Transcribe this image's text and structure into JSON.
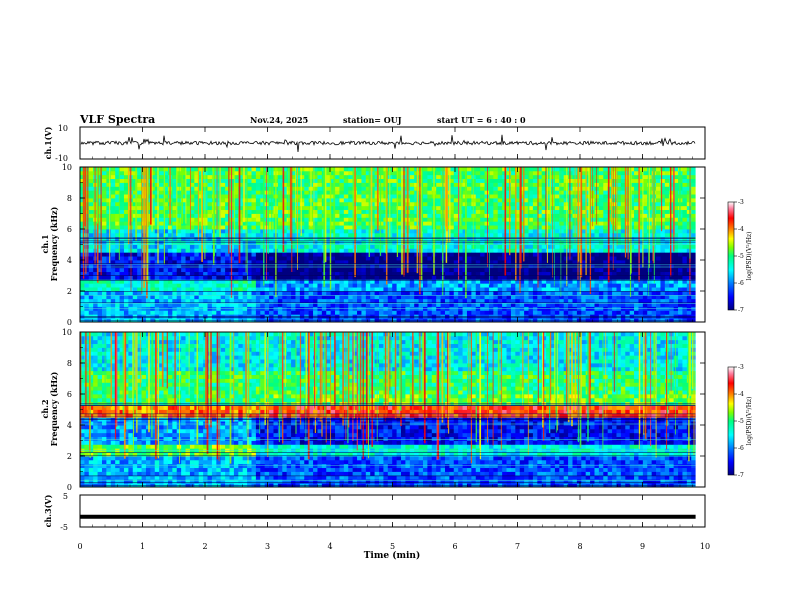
{
  "header": {
    "title": "VLF Spectra",
    "date": "Nov.24, 2025",
    "station": "station= OUJ",
    "start": "start  UT =   6  : 40 : 0"
  },
  "chart_data": [
    {
      "type": "line",
      "name": "ch1-waveform",
      "ylabel": "ch.1(V)",
      "ylim": [
        -10,
        10
      ],
      "yticks": [
        "10",
        "-10"
      ],
      "baseline": 0,
      "xlim": [
        0,
        9.85
      ]
    },
    {
      "type": "heatmap",
      "name": "ch1-spectrogram",
      "ylabel_channel": "ch.1",
      "ylabel": "Frequency (kHz)",
      "yticks": [
        "0",
        "2",
        "4",
        "6",
        "8",
        "10"
      ],
      "ylim": [
        0,
        10
      ],
      "xlim": [
        0,
        9.85
      ],
      "bands": [
        {
          "from": 0,
          "to": 2.0,
          "level": -5.8
        },
        {
          "from": 2.0,
          "to": 2.8,
          "level": -5.3
        },
        {
          "from": 2.8,
          "to": 4.5,
          "level": -6.5
        },
        {
          "from": 4.5,
          "to": 6.0,
          "level": -5.6
        },
        {
          "from": 6.0,
          "to": 10,
          "level": -4.9
        }
      ],
      "transition_min": 2.75
    },
    {
      "type": "heatmap",
      "name": "ch2-spectrogram",
      "ylabel_channel": "ch.2",
      "ylabel": "Frequency (kHz)",
      "yticks": [
        "0",
        "2",
        "4",
        "6",
        "8",
        "10"
      ],
      "ylim": [
        0,
        10
      ],
      "xlim": [
        0,
        9.85
      ],
      "bands": [
        {
          "from": 0,
          "to": 2.0,
          "level": -5.8
        },
        {
          "from": 2.0,
          "to": 2.8,
          "level": -4.8
        },
        {
          "from": 2.8,
          "to": 4.5,
          "level": -5.9
        },
        {
          "from": 4.5,
          "to": 5.2,
          "level": -3.9
        },
        {
          "from": 5.2,
          "to": 7.5,
          "level": -5.0
        },
        {
          "from": 7.5,
          "to": 10,
          "level": -5.5
        }
      ],
      "transition_min": 2.75
    },
    {
      "type": "line",
      "name": "ch3-waveform",
      "ylabel": "ch.3(V)",
      "ylim": [
        -5,
        5
      ],
      "yticks": [
        "5",
        "-5"
      ],
      "value": -1.8,
      "xlim": [
        0,
        9.85
      ]
    }
  ],
  "xaxis": {
    "label": "Time (min)",
    "ticks": [
      "0",
      "1",
      "2",
      "3",
      "4",
      "5",
      "6",
      "7",
      "8",
      "9",
      "10"
    ],
    "range": [
      0,
      10
    ]
  },
  "colorbar": {
    "label": "log(PSD)(V²/Hz)",
    "ticks": [
      "-3",
      "-4",
      "-5",
      "-6",
      "-7"
    ],
    "range": [
      -7,
      -3
    ],
    "colors": [
      "#00007f",
      "#0000ff",
      "#007fff",
      "#00ffff",
      "#00ff7f",
      "#7fff00",
      "#ffff00",
      "#ff7f00",
      "#ff0000",
      "#ff80a0",
      "#ffffff"
    ]
  }
}
